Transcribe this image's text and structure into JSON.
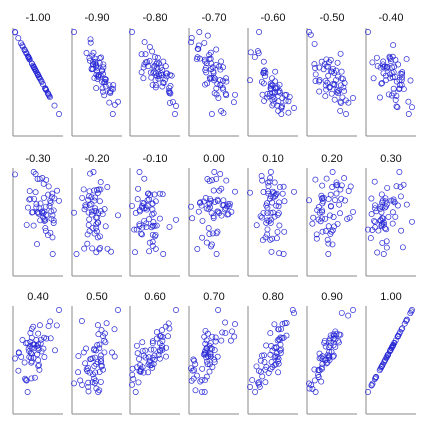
{
  "chart_data": {
    "type": "scatter",
    "layout": "small-multiples",
    "title": "",
    "xlabel": "",
    "ylabel": "",
    "grid": false,
    "legend": "none",
    "marker": "open-circle",
    "marker_color": "#2b2bd6",
    "axis_color": "#888888",
    "points_per_panel": 60,
    "correlations": [
      -1.0,
      -0.9,
      -0.8,
      -0.7,
      -0.6,
      -0.5,
      -0.4,
      -0.3,
      -0.2,
      -0.1,
      0.0,
      0.1,
      0.2,
      0.3,
      0.4,
      0.5,
      0.6,
      0.7,
      0.8,
      0.9,
      1.0
    ],
    "panel_labels": [
      "-1.00",
      "-0.90",
      "-0.80",
      "-0.70",
      "-0.60",
      "-0.50",
      "-0.40",
      "-0.30",
      "-0.20",
      "-0.10",
      "0.00",
      "0.10",
      "0.20",
      "0.30",
      "0.40",
      "0.50",
      "0.60",
      "0.70",
      "0.80",
      "0.90",
      "1.00"
    ]
  }
}
